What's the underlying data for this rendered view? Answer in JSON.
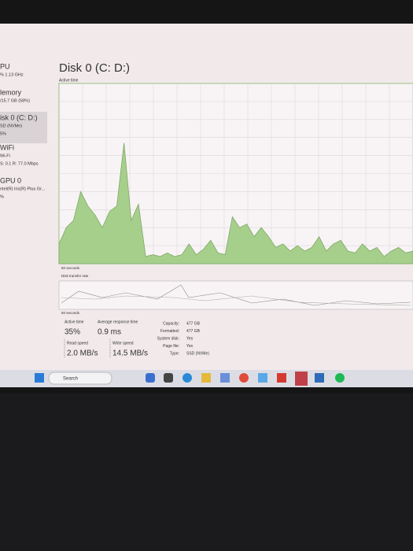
{
  "sidebar": [
    {
      "name": "PU",
      "detail": "% 1.13 GHz"
    },
    {
      "name": "lemory",
      "detail": "/15.7 GB (58%)"
    },
    {
      "name": "isk 0 (C: D:)",
      "detail": "SD (NVMe)",
      "value": "5%"
    },
    {
      "name": "WiFi",
      "detail": "Wi-Fi",
      "value": "S: 0.1 R: 77.0 Mbps"
    },
    {
      "name": "GPU 0",
      "detail": "ntel(R) Iris(R) Plus Gr...",
      "value": "%"
    }
  ],
  "chart_data": {
    "type": "area",
    "title": "Disk 0 (C: D:)",
    "subtitle": "Active time",
    "x_label": "60 seconds",
    "values": [
      11,
      20,
      24,
      40,
      32,
      27,
      20,
      29,
      32,
      67,
      24,
      33,
      4,
      5,
      4,
      6,
      4,
      5,
      11,
      5,
      8,
      13,
      6,
      5,
      26,
      20,
      22,
      15,
      20,
      15,
      9,
      11,
      7,
      10,
      7,
      9,
      15,
      7,
      11,
      13,
      7,
      6,
      11,
      7,
      9,
      4,
      7,
      9,
      6,
      7
    ],
    "ylim": [
      0,
      100
    ],
    "color": "#a6cf8c",
    "grid": true
  },
  "transfer": {
    "title": "Disk transfer rate",
    "x_label": "60 seconds"
  },
  "stats": [
    {
      "label": "Active time",
      "value": "35%"
    },
    {
      "label": "Average response time",
      "value": "0.9 ms"
    },
    {
      "label": "Read speed",
      "value": "2.0 MB/s"
    },
    {
      "label": "Write speed",
      "value": "14.5 MB/s"
    }
  ],
  "properties": [
    {
      "label": "Capacity:",
      "value": "477 GB"
    },
    {
      "label": "Formatted:",
      "value": "477 GB"
    },
    {
      "label": "System disk:",
      "value": "Yes"
    },
    {
      "label": "Page file:",
      "value": "Yes"
    },
    {
      "label": "Type:",
      "value": "SSD (NVMe)"
    }
  ],
  "taskbar": {
    "search": "Search"
  }
}
